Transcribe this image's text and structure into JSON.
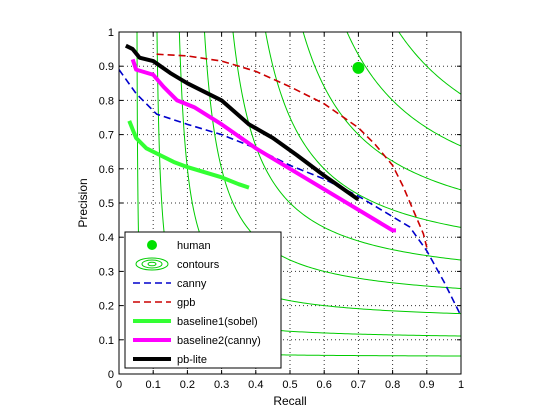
{
  "chart_data": {
    "type": "line",
    "title": "",
    "xlabel": "Recall",
    "ylabel": "Precision",
    "xlim": [
      0,
      1
    ],
    "ylim": [
      0,
      1
    ],
    "xticks": [
      "0",
      "0.1",
      "0.2",
      "0.3",
      "0.4",
      "0.5",
      "0.6",
      "0.7",
      "0.8",
      "0.9",
      "1"
    ],
    "yticks": [
      "0",
      "0.1",
      "0.2",
      "0.3",
      "0.4",
      "0.5",
      "0.6",
      "0.7",
      "0.8",
      "0.9",
      "1"
    ],
    "grid": true,
    "grid_style": "dotted",
    "legend_position": "bottom-left",
    "contour_f_values": [
      0.1,
      0.2,
      0.3,
      0.4,
      0.5,
      0.6,
      0.7,
      0.8,
      0.9
    ],
    "series": [
      {
        "name": "human",
        "style": "marker",
        "color": "#00e000",
        "points": [
          [
            0.7,
            0.895
          ]
        ]
      },
      {
        "name": "contours",
        "style": "contour",
        "color": "#00cc00"
      },
      {
        "name": "canny",
        "style": "dashed",
        "color": "#0000cc",
        "points": [
          [
            0.0,
            0.89
          ],
          [
            0.05,
            0.82
          ],
          [
            0.08,
            0.79
          ],
          [
            0.11,
            0.76
          ],
          [
            0.2,
            0.73
          ],
          [
            0.3,
            0.7
          ],
          [
            0.4,
            0.66
          ],
          [
            0.5,
            0.61
          ],
          [
            0.6,
            0.57
          ],
          [
            0.7,
            0.52
          ],
          [
            0.8,
            0.46
          ],
          [
            0.85,
            0.43
          ],
          [
            0.9,
            0.36
          ],
          [
            0.95,
            0.27
          ],
          [
            1.0,
            0.17
          ]
        ]
      },
      {
        "name": "gpb",
        "style": "dashed",
        "color": "#cc0000",
        "points": [
          [
            0.11,
            0.935
          ],
          [
            0.2,
            0.93
          ],
          [
            0.3,
            0.915
          ],
          [
            0.4,
            0.885
          ],
          [
            0.5,
            0.84
          ],
          [
            0.6,
            0.79
          ],
          [
            0.7,
            0.72
          ],
          [
            0.75,
            0.67
          ],
          [
            0.8,
            0.61
          ],
          [
            0.83,
            0.55
          ],
          [
            0.86,
            0.48
          ],
          [
            0.89,
            0.41
          ],
          [
            0.9,
            0.37
          ]
        ]
      },
      {
        "name": "baseline1(sobel)",
        "style": "solid-thick",
        "color": "#33ff33",
        "points": [
          [
            0.03,
            0.74
          ],
          [
            0.05,
            0.69
          ],
          [
            0.08,
            0.66
          ],
          [
            0.12,
            0.64
          ],
          [
            0.16,
            0.62
          ],
          [
            0.2,
            0.605
          ],
          [
            0.25,
            0.59
          ],
          [
            0.3,
            0.575
          ],
          [
            0.35,
            0.555
          ],
          [
            0.38,
            0.545
          ]
        ]
      },
      {
        "name": "baseline2(canny)",
        "style": "solid-thick",
        "color": "#ff00ff",
        "points": [
          [
            0.04,
            0.92
          ],
          [
            0.05,
            0.89
          ],
          [
            0.1,
            0.875
          ],
          [
            0.13,
            0.84
          ],
          [
            0.17,
            0.8
          ],
          [
            0.22,
            0.78
          ],
          [
            0.3,
            0.73
          ],
          [
            0.4,
            0.66
          ],
          [
            0.5,
            0.6
          ],
          [
            0.6,
            0.54
          ],
          [
            0.7,
            0.48
          ],
          [
            0.8,
            0.42
          ],
          [
            0.81,
            0.42
          ]
        ]
      },
      {
        "name": "pb-lite",
        "style": "solid-thick",
        "color": "#000000",
        "points": [
          [
            0.02,
            0.96
          ],
          [
            0.04,
            0.95
          ],
          [
            0.06,
            0.925
          ],
          [
            0.1,
            0.915
          ],
          [
            0.15,
            0.88
          ],
          [
            0.2,
            0.85
          ],
          [
            0.3,
            0.8
          ],
          [
            0.38,
            0.73
          ],
          [
            0.45,
            0.69
          ],
          [
            0.52,
            0.64
          ],
          [
            0.6,
            0.58
          ],
          [
            0.65,
            0.545
          ],
          [
            0.7,
            0.51
          ]
        ]
      }
    ]
  }
}
